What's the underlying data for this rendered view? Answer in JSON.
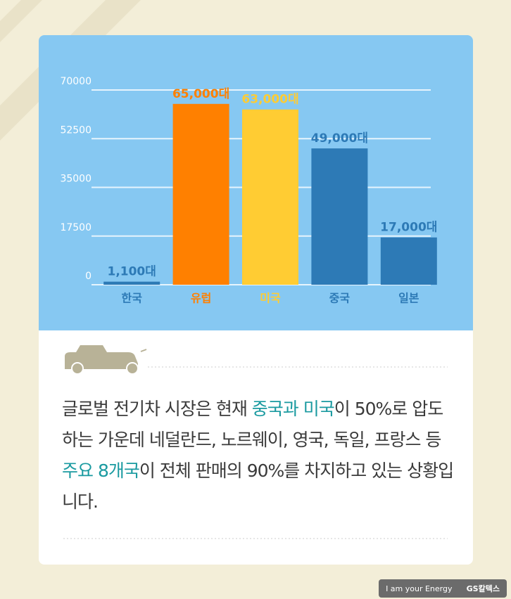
{
  "chart_data": {
    "type": "bar",
    "categories": [
      "한국",
      "유럽",
      "미국",
      "중국",
      "일본"
    ],
    "values": [
      1100,
      65000,
      63000,
      49000,
      17000
    ],
    "value_labels": [
      "1,100대",
      "65,000대",
      "63,000대",
      "49,000대",
      "17,000대"
    ],
    "colors": [
      "#2d7ab6",
      "#ff8000",
      "#ffcc33",
      "#2d7ab6",
      "#2d7ab6"
    ],
    "ylim": [
      0,
      70000
    ],
    "yticks": [
      0,
      17500,
      35000,
      52500,
      70000
    ],
    "grid": true
  },
  "caption": [
    {
      "text": "글로벌 전기차 시장은 현재 ",
      "highlight": false
    },
    {
      "text": "중국과 미국",
      "highlight": true
    },
    {
      "text": "이 50%로 압도하는 가운데 네덜란드, 노르웨이, 영국, 독일, 프랑스 등 ",
      "highlight": false
    },
    {
      "text": "주요 8개국",
      "highlight": true
    },
    {
      "text": "이 전체 판매의 90%를 차지하고 있는 상황입니다.",
      "highlight": false
    }
  ],
  "footer": {
    "slogan": "I am your Energy",
    "brand": "GS칼텍스"
  }
}
